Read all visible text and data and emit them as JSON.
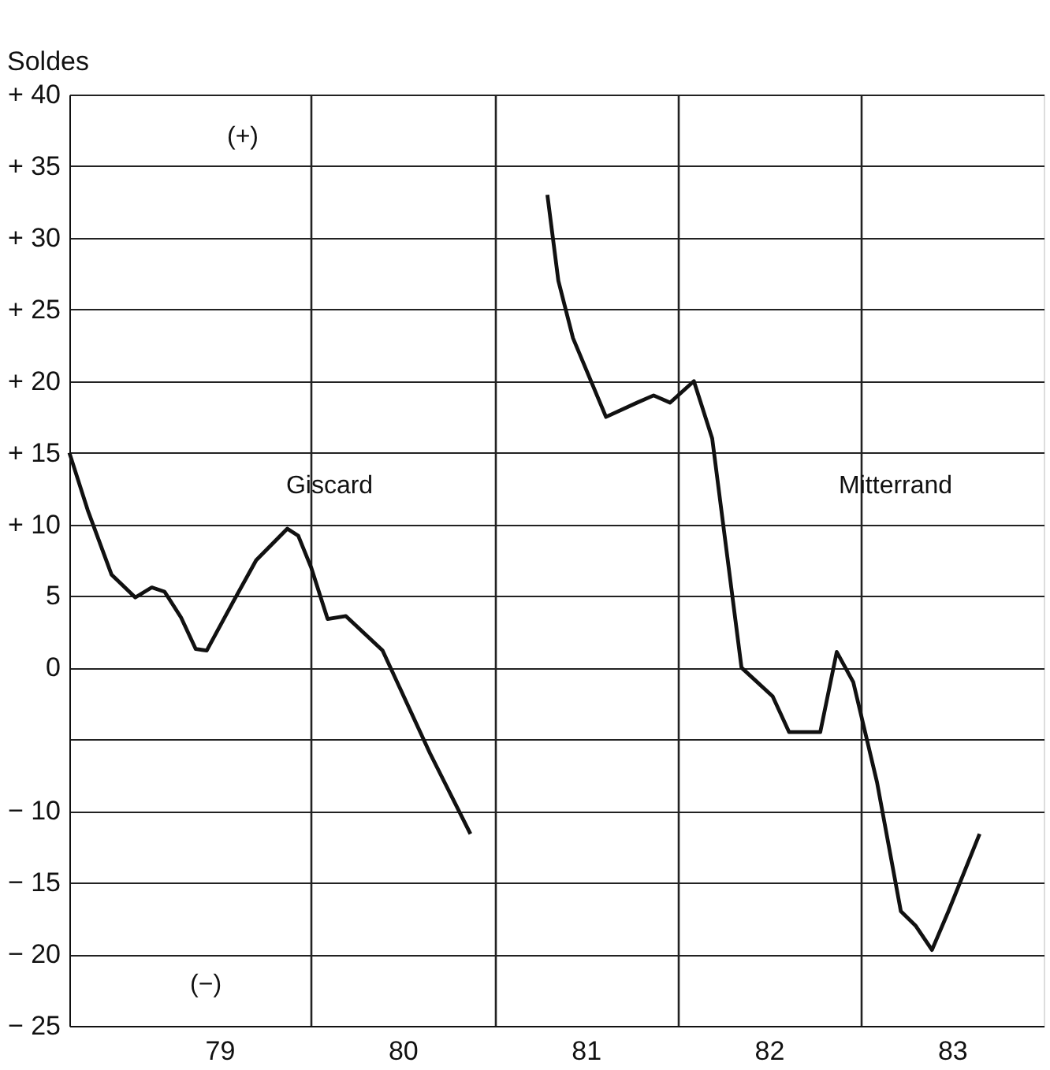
{
  "chart_data": {
    "type": "line",
    "ylabel": "Soldes",
    "xlim": [
      78.18,
      83.5
    ],
    "xticks": [
      79,
      {
        "value": 79.5,
        "label": null
      },
      80,
      {
        "value": 80.5,
        "label": null
      },
      81,
      {
        "value": 81.5,
        "label": null
      },
      82,
      {
        "value": 82.5,
        "label": null
      },
      83
    ],
    "ylim": [
      -25,
      40
    ],
    "yticks": [
      {
        "value": 40,
        "label": "+ 40"
      },
      {
        "value": 35,
        "label": "+ 35"
      },
      {
        "value": 30,
        "label": "+ 30"
      },
      {
        "value": 25,
        "label": "+ 25"
      },
      {
        "value": 20,
        "label": "+ 20"
      },
      {
        "value": 15,
        "label": "+ 15"
      },
      {
        "value": 10,
        "label": "+ 10"
      },
      5,
      0,
      {
        "value": -5,
        "label": null
      },
      {
        "value": -10,
        "label": "− 10"
      },
      {
        "value": -15,
        "label": "− 15"
      },
      {
        "value": -20,
        "label": "− 20"
      },
      {
        "value": -25,
        "label": "− 25"
      }
    ],
    "grid": true,
    "marker": "none",
    "line_style": "solid",
    "series": [
      {
        "color": "#111111",
        "x": [
          78.18,
          78.28,
          78.41,
          78.54,
          78.63,
          78.7,
          78.79,
          78.87,
          78.93,
          79.07,
          79.2,
          79.37,
          79.43,
          79.5,
          79.59,
          79.69,
          79.89,
          80.15,
          80.37
        ],
        "values": [
          15,
          11,
          6.5,
          4.9,
          5.6,
          5.3,
          3.5,
          1.3,
          1.2,
          4.5,
          7.5,
          9.7,
          9.2,
          7,
          3.4,
          3.6,
          1.2,
          -6,
          -11.6
        ]
      },
      {
        "color": "#111111",
        "x": [
          80.79,
          80.85,
          80.93,
          81.11,
          81.28,
          81.37,
          81.46,
          81.59,
          81.69,
          81.85,
          82.02,
          82.11,
          82.28,
          82.37,
          82.46,
          82.59,
          82.72,
          82.8,
          82.89,
          82.98,
          83.15
        ],
        "values": [
          33,
          27,
          23,
          17.5,
          18.5,
          19,
          18.5,
          20,
          16,
          0,
          -2,
          -4.5,
          -4.5,
          1.1,
          -1,
          -8,
          -17,
          -18,
          -19.7,
          -17,
          -11.6
        ]
      }
    ],
    "annotations": [
      "Giscard",
      "Mitterrand",
      "(+)",
      "(−)"
    ]
  }
}
